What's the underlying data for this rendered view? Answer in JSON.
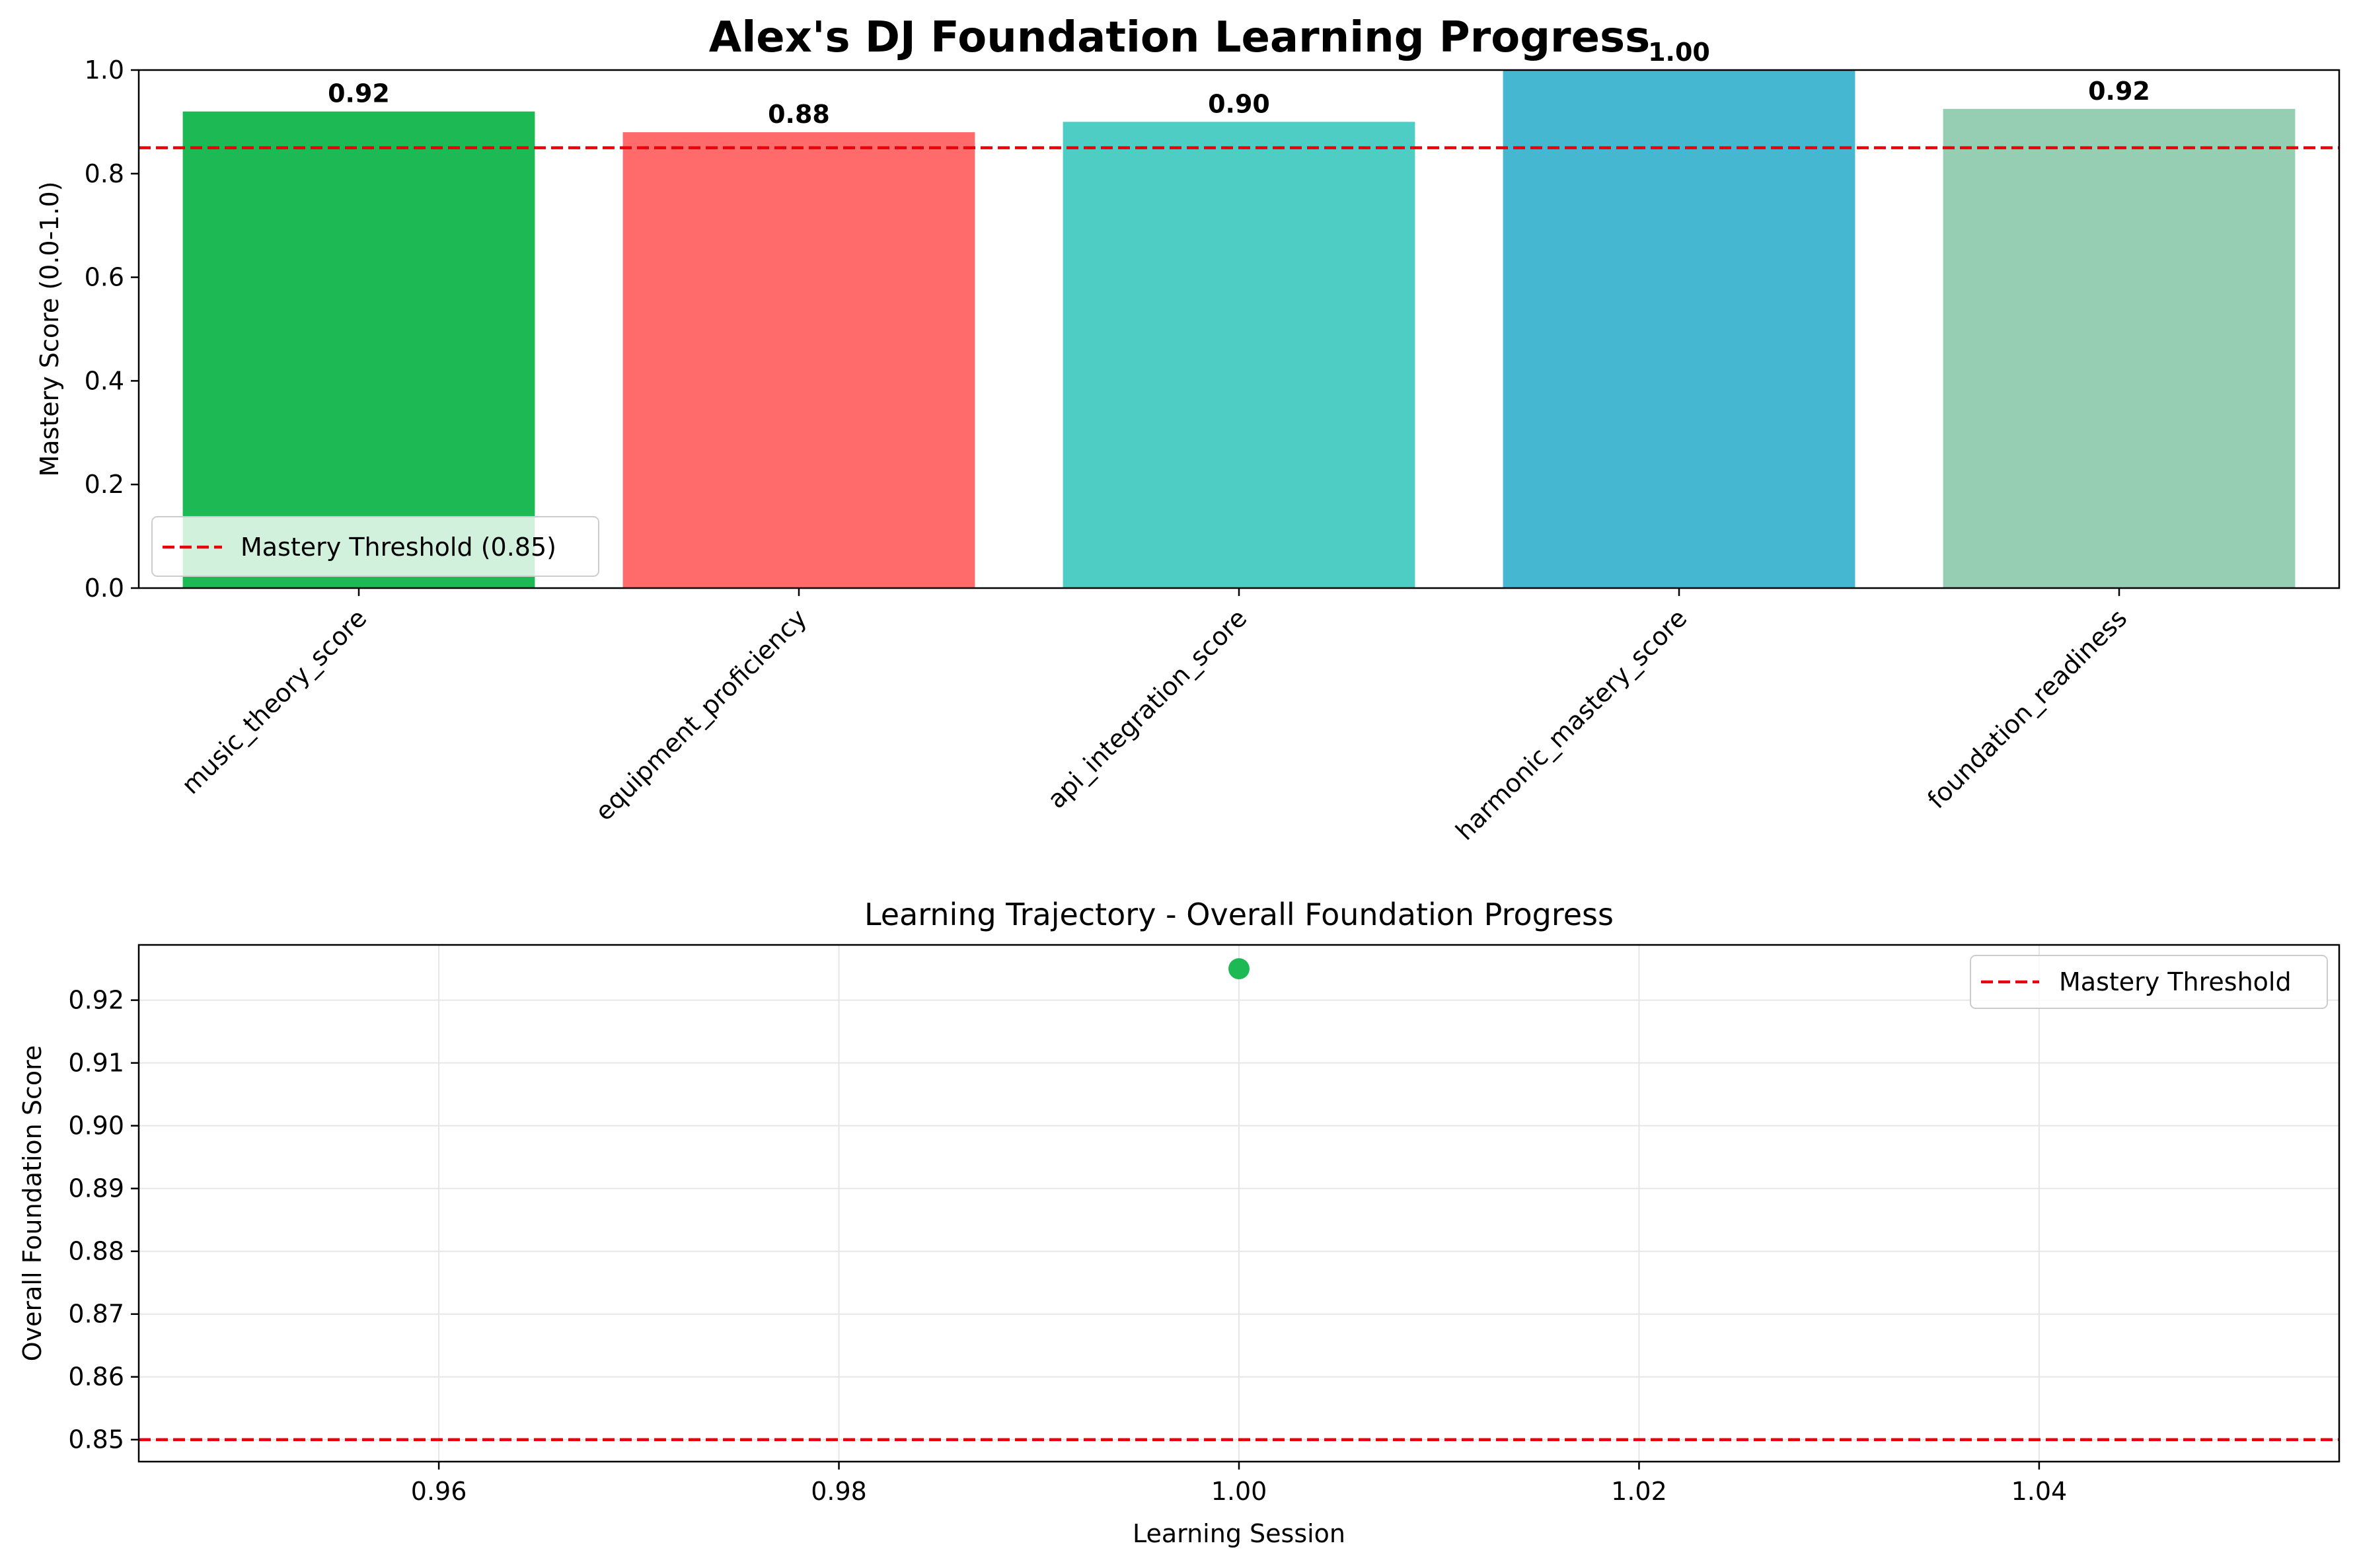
{
  "figure_title": "Alex's DJ Foundation Learning Progress",
  "colors": {
    "threshold": "#e8000b",
    "point": "#1db954",
    "grid": "#e6e6e6",
    "axis": "#000000"
  },
  "chart_data": [
    {
      "type": "bar",
      "title": "",
      "xlabel": "",
      "ylabel": "Mastery Score (0.0-1.0)",
      "ylim": [
        0.0,
        1.0
      ],
      "yticks": [
        "0.0",
        "0.2",
        "0.4",
        "0.6",
        "0.8",
        "1.0"
      ],
      "categories": [
        "music_theory_score",
        "equipment_proficiency",
        "api_integration_score",
        "harmonic_mastery_score",
        "foundation_readiness"
      ],
      "values": [
        0.92,
        0.88,
        0.9,
        1.0,
        0.925
      ],
      "value_labels": [
        "0.92",
        "0.88",
        "0.90",
        "1.00",
        "0.92"
      ],
      "bar_colors": [
        "#1db954",
        "#ff6b6b",
        "#4ecdc4",
        "#45b7d1",
        "#96ceb4"
      ],
      "threshold": {
        "value": 0.85,
        "label": "Mastery Threshold (0.85)"
      },
      "legend": {
        "position": "lower-left",
        "entries": [
          "Mastery Threshold (0.85)"
        ]
      },
      "grid": false
    },
    {
      "type": "scatter",
      "title": "Learning Trajectory - Overall Foundation Progress",
      "xlabel": "Learning Session",
      "ylabel": "Overall Foundation Score",
      "xlim": [
        0.945,
        1.055
      ],
      "ylim": [
        0.8465,
        0.9288
      ],
      "xticks": [
        "0.96",
        "0.98",
        "1.00",
        "1.02",
        "1.04"
      ],
      "yticks": [
        "0.85",
        "0.86",
        "0.87",
        "0.88",
        "0.89",
        "0.90",
        "0.91",
        "0.92"
      ],
      "series": [
        {
          "x": [
            1.0
          ],
          "y": [
            0.925
          ]
        }
      ],
      "threshold": {
        "value": 0.85,
        "label": "Mastery Threshold"
      },
      "legend": {
        "position": "top-right",
        "entries": [
          "Mastery Threshold"
        ]
      },
      "grid": true
    }
  ]
}
